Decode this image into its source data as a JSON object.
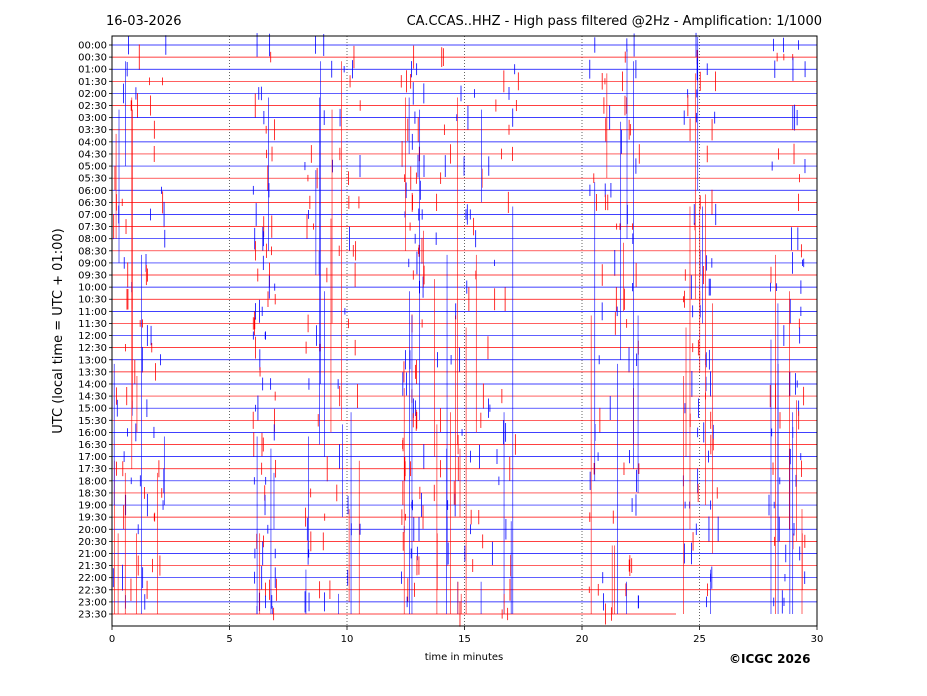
{
  "header": {
    "date": "16-03-2026",
    "title": "CA.CCAS..HHZ - High pass filtered @2Hz - Amplification: 1/1000"
  },
  "footer": {
    "copyright": "©ICGC 2026"
  },
  "chart_data": {
    "type": "line",
    "title": "CA.CCAS..HHZ - High pass filtered @2Hz - Amplification: 1/1000",
    "xlabel": "time in minutes",
    "ylabel": "UTC (local time = UTC + 01:00)",
    "xlim": [
      0,
      30
    ],
    "x_ticks": [
      "0",
      "5",
      "10",
      "15",
      "20",
      "25",
      "30"
    ],
    "y_ticks": [
      "00:00",
      "00:30",
      "01:00",
      "01:30",
      "02:00",
      "02:30",
      "03:00",
      "03:30",
      "04:00",
      "04:30",
      "05:00",
      "05:30",
      "06:00",
      "06:30",
      "07:00",
      "07:30",
      "08:00",
      "08:30",
      "09:00",
      "09:30",
      "10:00",
      "10:30",
      "11:00",
      "11:30",
      "12:00",
      "12:30",
      "13:00",
      "13:30",
      "14:00",
      "14:30",
      "15:00",
      "15:30",
      "16:00",
      "16:30",
      "17:00",
      "17:30",
      "18:00",
      "18:30",
      "19:00",
      "19:30",
      "20:00",
      "20:30",
      "21:00",
      "21:30",
      "22:00",
      "22:30",
      "23:00",
      "23:30"
    ],
    "vertical_gridlines_at": [
      5,
      10,
      15,
      20,
      25
    ],
    "trace_colors": [
      "#0000ff",
      "#ff0000"
    ],
    "recorded_until_minute_of_last_trace": 24
  }
}
